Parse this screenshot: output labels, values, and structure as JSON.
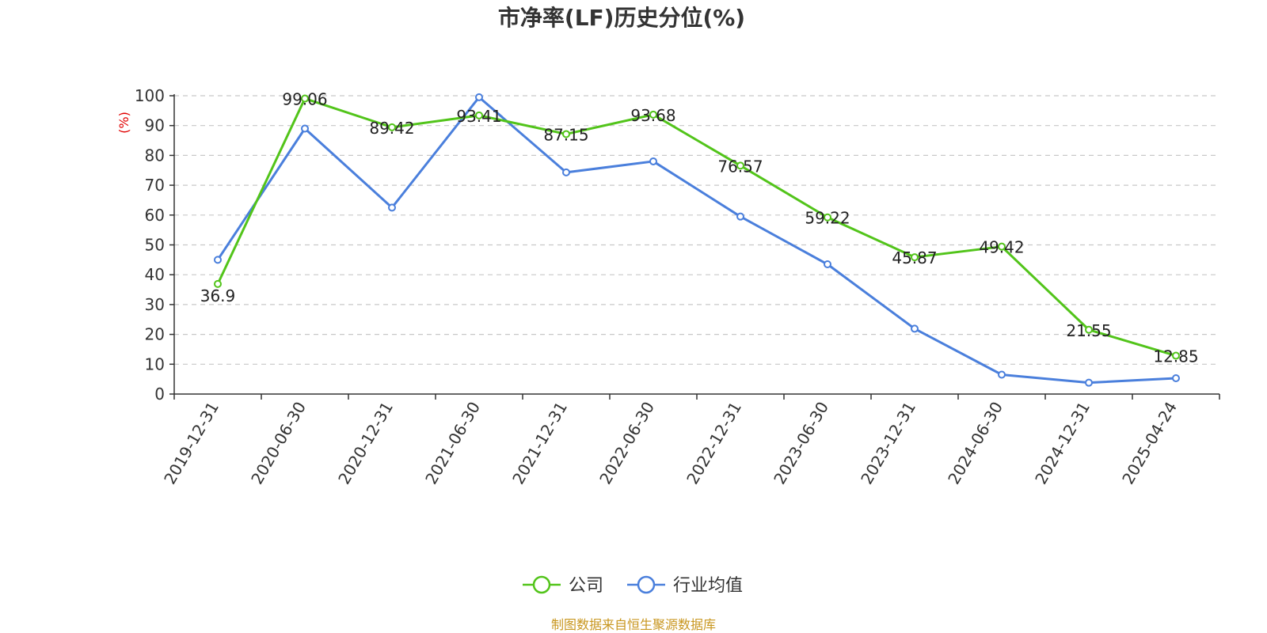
{
  "colors": {
    "company": "#52c41a",
    "industry": "#4a7fdc",
    "grid": "#c8c8c8",
    "axis": "#333333",
    "unit_label": "#e00000",
    "source_text": "#c8961e"
  },
  "source": "制图数据来自恒生聚源数据库",
  "chart_data": {
    "type": "line",
    "title": "市净率(LF)历史分位(%)",
    "ylabel": "(%)",
    "xlabel": "",
    "ylim": [
      0,
      100
    ],
    "yticks": [
      0,
      10,
      20,
      30,
      40,
      50,
      60,
      70,
      80,
      90,
      100
    ],
    "grid": true,
    "legend_position": "bottom-center",
    "categories": [
      "2019-12-31",
      "2020-06-30",
      "2020-12-31",
      "2021-06-30",
      "2021-12-31",
      "2022-06-30",
      "2022-12-31",
      "2023-06-30",
      "2023-12-31",
      "2024-06-30",
      "2024-12-31",
      "2025-04-24"
    ],
    "series": [
      {
        "name": "公司",
        "color_key": "company",
        "values": [
          36.9,
          99.06,
          89.42,
          93.41,
          87.15,
          93.68,
          76.57,
          59.22,
          45.87,
          49.42,
          21.55,
          12.85
        ],
        "labels": [
          "36.9",
          "99.06",
          "89.42",
          "93.41",
          "87.15",
          "93.68",
          "76.57",
          "59.22",
          "45.87",
          "49.42",
          "21.55",
          "12.85"
        ]
      },
      {
        "name": "行业均值",
        "color_key": "industry",
        "values": [
          45,
          89,
          62.5,
          99.5,
          74.3,
          78,
          59.5,
          43.5,
          21.9,
          6.5,
          3.8,
          5.3
        ]
      }
    ]
  }
}
